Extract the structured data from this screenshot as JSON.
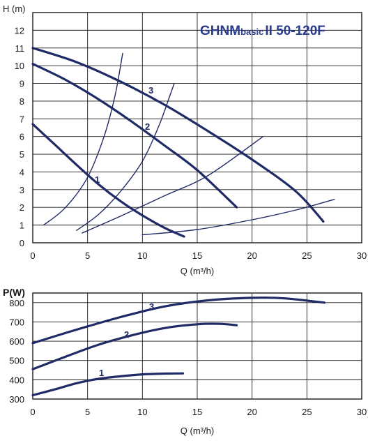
{
  "chart_data": [
    {
      "type": "line",
      "title": "GHNMbasicII 50-120F",
      "title_parts": {
        "main": "GHNM",
        "sub": "basic",
        "tail": "II 50-120F"
      },
      "ylabel": "H (m)",
      "xlabel": "Q (m³/h)",
      "xlim": [
        0,
        30
      ],
      "ylim": [
        0,
        13
      ],
      "x_ticks": [
        "0",
        "5",
        "10",
        "15",
        "20",
        "25",
        "30"
      ],
      "y_ticks": [
        "0",
        "1",
        "2",
        "3",
        "4",
        "5",
        "6",
        "7",
        "8",
        "9",
        "10",
        "11",
        "12"
      ],
      "grid": true,
      "series": [
        {
          "name": "1",
          "kind": "pump",
          "points": [
            [
              0,
              6.7
            ],
            [
              2,
              5.55
            ],
            [
              4,
              4.4
            ],
            [
              6,
              3.3
            ],
            [
              8,
              2.35
            ],
            [
              10,
              1.55
            ],
            [
              12,
              0.85
            ],
            [
              13.8,
              0.35
            ]
          ]
        },
        {
          "name": "2",
          "kind": "pump",
          "points": [
            [
              0,
              10.1
            ],
            [
              3,
              9.2
            ],
            [
              6,
              8.1
            ],
            [
              9,
              6.85
            ],
            [
              12,
              5.5
            ],
            [
              15,
              4.1
            ],
            [
              18.6,
              2.0
            ]
          ]
        },
        {
          "name": "3",
          "kind": "pump",
          "points": [
            [
              0,
              11.0
            ],
            [
              4,
              10.2
            ],
            [
              8,
              9.1
            ],
            [
              12,
              7.8
            ],
            [
              16,
              6.3
            ],
            [
              20,
              4.7
            ],
            [
              24,
              2.9
            ],
            [
              26.5,
              1.2
            ]
          ]
        },
        {
          "kind": "system",
          "points": [
            [
              1,
              1.0
            ],
            [
              3,
              2.0
            ],
            [
              5,
              3.7
            ],
            [
              6.5,
              6.0
            ],
            [
              7.5,
              8.3
            ],
            [
              8.2,
              10.7
            ]
          ]
        },
        {
          "kind": "system",
          "points": [
            [
              4,
              0.7
            ],
            [
              6,
              1.6
            ],
            [
              8,
              2.9
            ],
            [
              10,
              4.6
            ],
            [
              11.5,
              6.6
            ],
            [
              12.5,
              8.3
            ],
            [
              12.9,
              9.0
            ]
          ]
        },
        {
          "kind": "system",
          "points": [
            [
              4.5,
              0.55
            ],
            [
              8,
              1.5
            ],
            [
              12,
              2.65
            ],
            [
              16,
              3.8
            ],
            [
              21,
              6.0
            ]
          ]
        },
        {
          "kind": "system",
          "points": [
            [
              10,
              0.45
            ],
            [
              15,
              0.75
            ],
            [
              20,
              1.3
            ],
            [
              24,
              1.85
            ],
            [
              27.5,
              2.45
            ]
          ]
        }
      ],
      "annotations": [
        "1",
        "2",
        "3"
      ]
    },
    {
      "type": "line",
      "ylabel": "P(W)",
      "xlabel": "Q (m³/h)",
      "xlim": [
        0,
        30
      ],
      "ylim": [
        300,
        850
      ],
      "x_ticks": [
        "0",
        "5",
        "10",
        "15",
        "20",
        "25",
        "30"
      ],
      "y_ticks": [
        "300",
        "400",
        "500",
        "600",
        "700",
        "800"
      ],
      "grid": true,
      "series": [
        {
          "name": "1",
          "points": [
            [
              0,
              320
            ],
            [
              2,
              350
            ],
            [
              4,
              382
            ],
            [
              6,
              405
            ],
            [
              8,
              418
            ],
            [
              10,
              428
            ],
            [
              12,
              432
            ],
            [
              13.7,
              433
            ]
          ]
        },
        {
          "name": "2",
          "points": [
            [
              0,
              455
            ],
            [
              3,
              520
            ],
            [
              6,
              582
            ],
            [
              9,
              630
            ],
            [
              12,
              668
            ],
            [
              15,
              688
            ],
            [
              17,
              690
            ],
            [
              18.6,
              683
            ]
          ]
        },
        {
          "name": "3",
          "points": [
            [
              0,
              590
            ],
            [
              4,
              660
            ],
            [
              8,
              725
            ],
            [
              12,
              780
            ],
            [
              16,
              812
            ],
            [
              20,
              825
            ],
            [
              23,
              822
            ],
            [
              26.6,
              800
            ]
          ]
        }
      ],
      "annotations": [
        "1",
        "2",
        "3"
      ]
    }
  ]
}
